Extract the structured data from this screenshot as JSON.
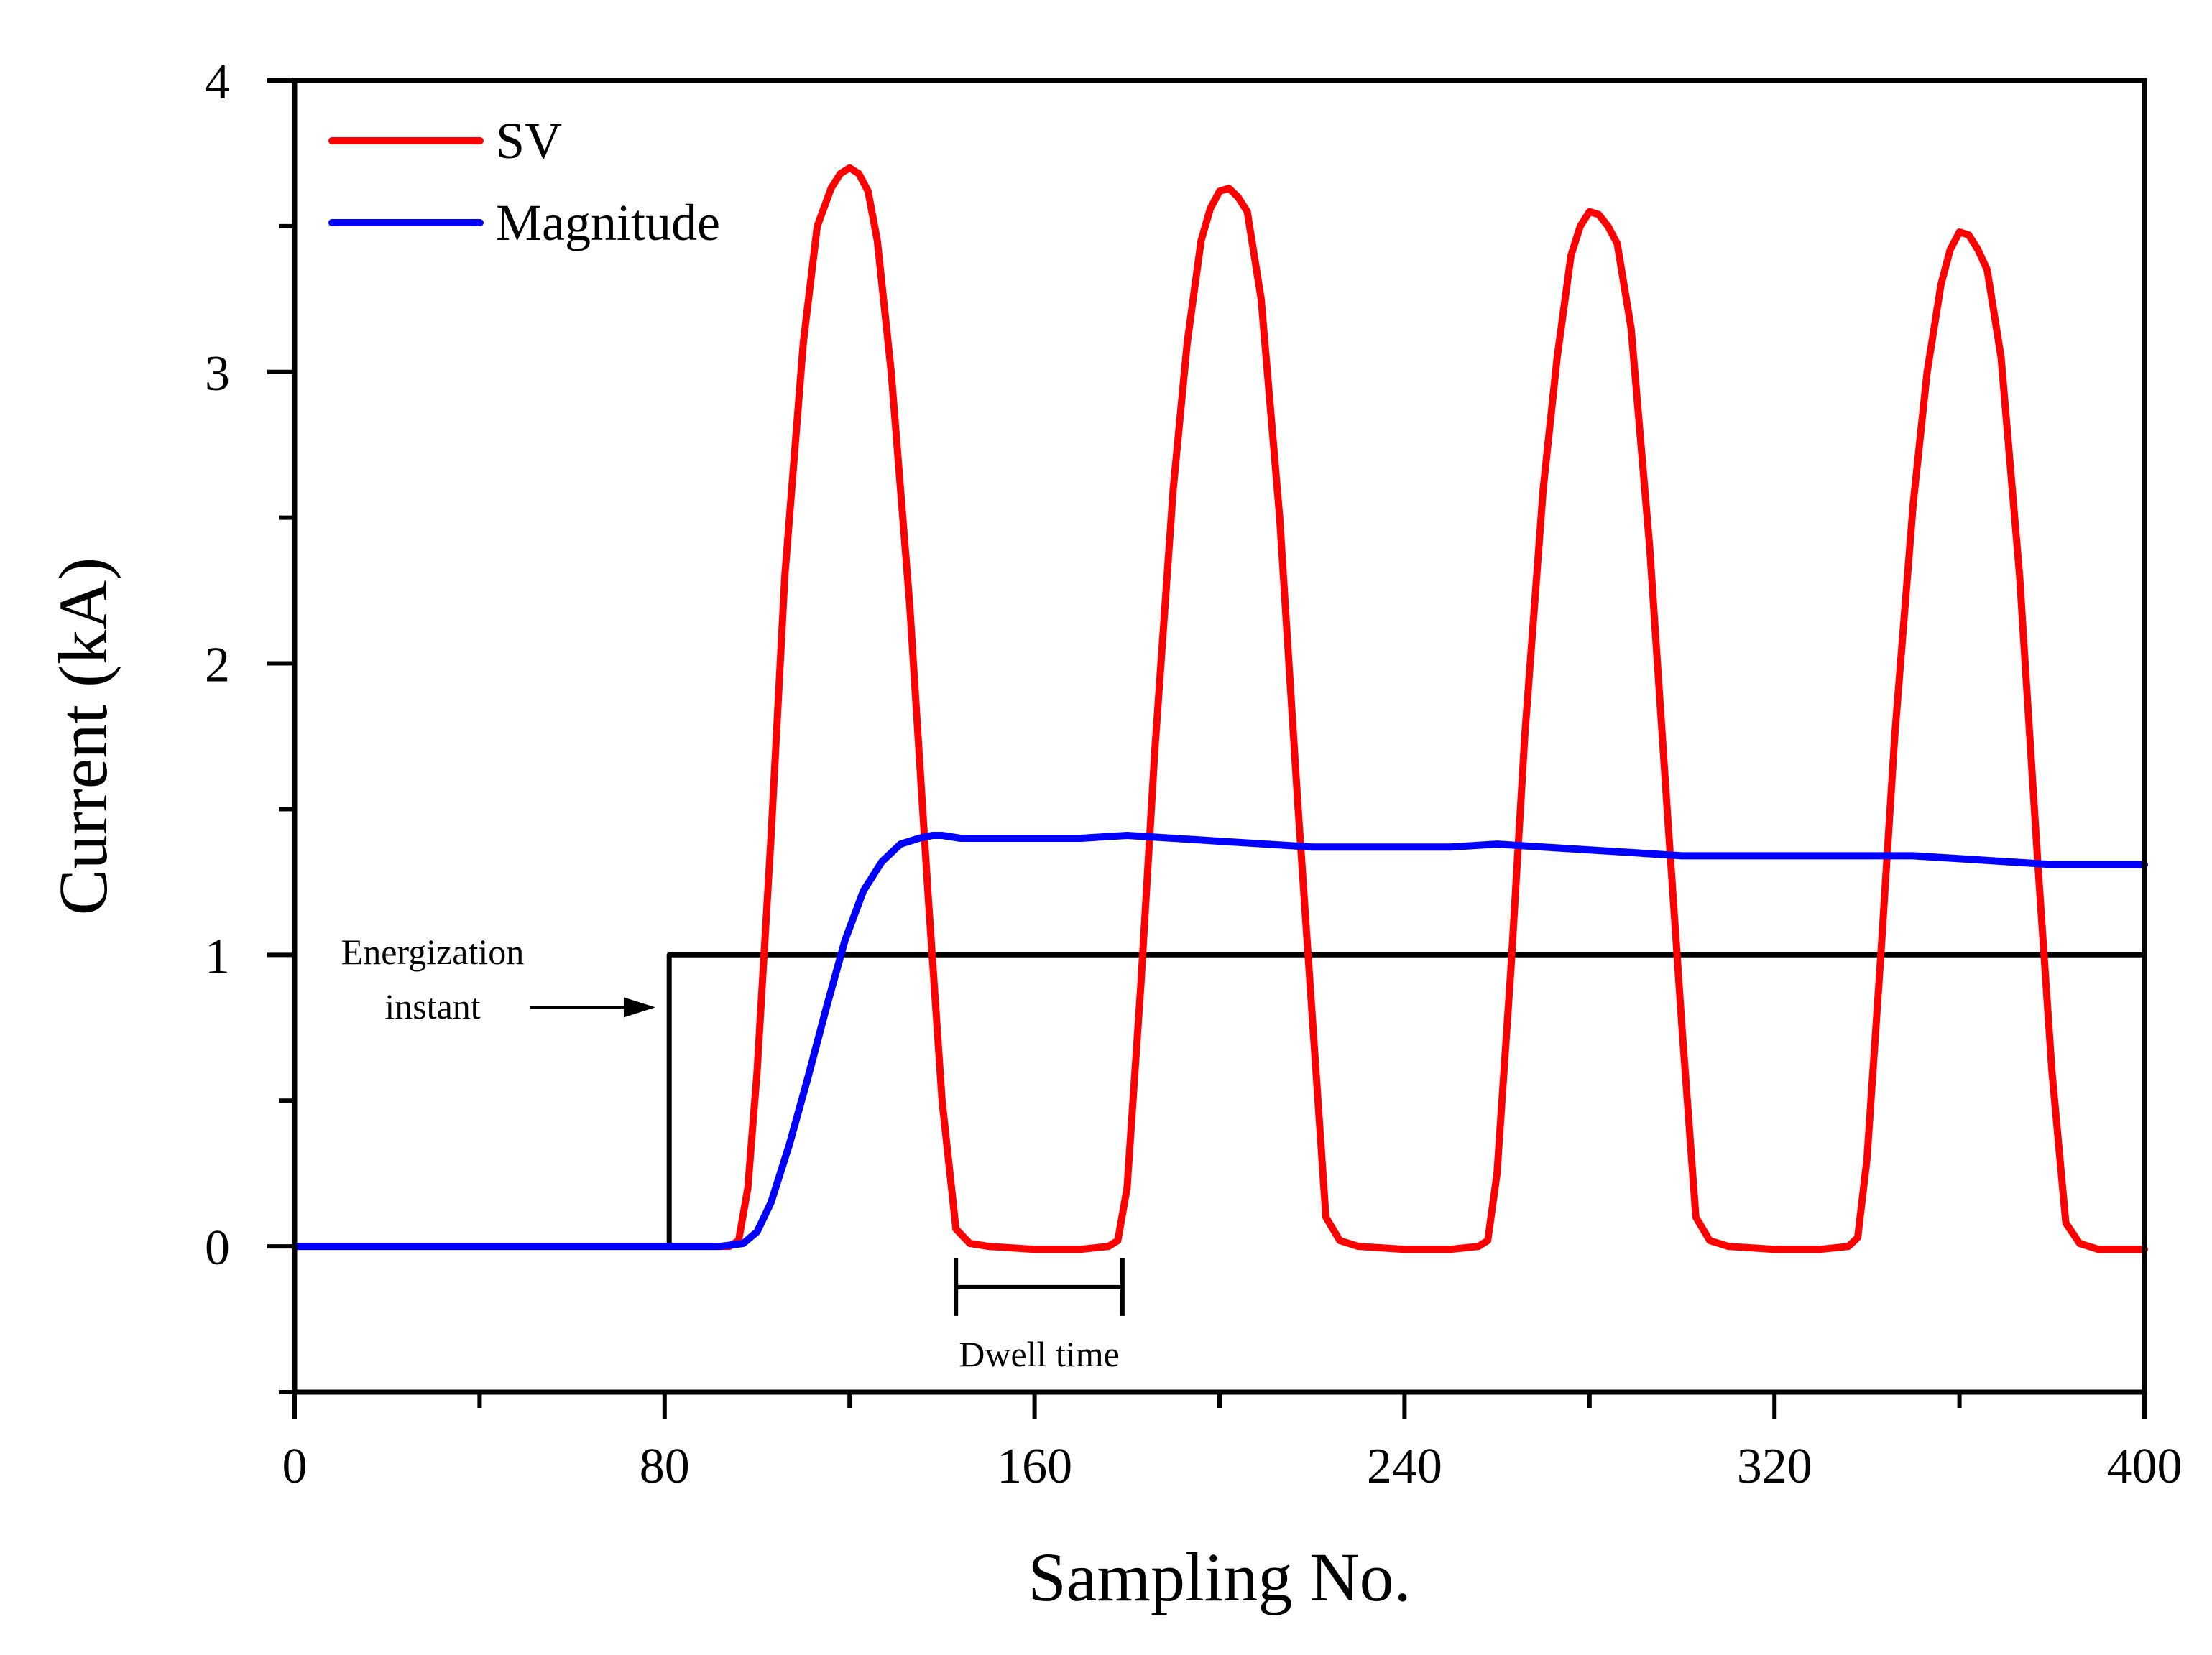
{
  "chart_data": {
    "type": "line",
    "xlabel": "Sampling No.",
    "ylabel": "Current (kA)",
    "xlim": [
      0,
      400
    ],
    "ylim": [
      -0.5,
      4
    ],
    "xticks": [
      0,
      80,
      160,
      240,
      320,
      400
    ],
    "xticks_minor": [
      40,
      120,
      200,
      280,
      360
    ],
    "yticks": [
      0,
      1,
      2,
      3,
      4
    ],
    "yticks_minor": [
      -0.5,
      0.5,
      1.5,
      2.5,
      3.5
    ],
    "grid": false,
    "legend_position": "top-left",
    "series": [
      {
        "name": "SV",
        "color": "#ff0000",
        "x": [
          0,
          90,
          94,
          96,
          98,
          100,
          103,
          106,
          110,
          113,
          116,
          118,
          120,
          122,
          124,
          126,
          129,
          133,
          137,
          140,
          143,
          146,
          150,
          160,
          170,
          176,
          178,
          180,
          183,
          186,
          190,
          193,
          196,
          198,
          200,
          202,
          204,
          206,
          209,
          213,
          217,
          220,
          223,
          226,
          230,
          240,
          250,
          256,
          258,
          260,
          263,
          266,
          270,
          273,
          276,
          278,
          280,
          282,
          284,
          286,
          289,
          293,
          297,
          300,
          303,
          306,
          310,
          320,
          330,
          336,
          338,
          340,
          343,
          346,
          350,
          353,
          356,
          358,
          360,
          362,
          364,
          366,
          369,
          373,
          377,
          380,
          383,
          386,
          390,
          400
        ],
        "y": [
          0,
          0,
          0,
          0.02,
          0.2,
          0.6,
          1.4,
          2.3,
          3.1,
          3.5,
          3.63,
          3.68,
          3.7,
          3.68,
          3.62,
          3.45,
          3.0,
          2.2,
          1.2,
          0.5,
          0.06,
          0.01,
          0,
          -0.01,
          -0.01,
          0,
          0.02,
          0.2,
          0.9,
          1.7,
          2.6,
          3.1,
          3.45,
          3.56,
          3.62,
          3.63,
          3.6,
          3.55,
          3.25,
          2.5,
          1.5,
          0.8,
          0.1,
          0.02,
          0,
          -0.01,
          -0.01,
          0,
          0.02,
          0.25,
          0.95,
          1.75,
          2.6,
          3.05,
          3.4,
          3.5,
          3.55,
          3.54,
          3.5,
          3.44,
          3.15,
          2.4,
          1.45,
          0.75,
          0.1,
          0.02,
          0,
          -0.01,
          -0.01,
          0,
          0.03,
          0.3,
          1.0,
          1.75,
          2.55,
          3.0,
          3.3,
          3.42,
          3.48,
          3.47,
          3.42,
          3.35,
          3.05,
          2.3,
          1.3,
          0.6,
          0.08,
          0.01,
          -0.01,
          -0.01
        ]
      },
      {
        "name": "Magnitude",
        "color": "#0000ff",
        "x": [
          0,
          85,
          92,
          97,
          100,
          103,
          107,
          111,
          115,
          119,
          123,
          127,
          131,
          135,
          138,
          140,
          144,
          150,
          160,
          170,
          180,
          190,
          200,
          210,
          220,
          230,
          240,
          250,
          260,
          270,
          280,
          290,
          300,
          310,
          320,
          330,
          340,
          350,
          360,
          370,
          380,
          390,
          400
        ],
        "y": [
          0,
          0,
          0,
          0.01,
          0.05,
          0.15,
          0.35,
          0.58,
          0.82,
          1.05,
          1.22,
          1.32,
          1.38,
          1.4,
          1.41,
          1.41,
          1.4,
          1.4,
          1.4,
          1.4,
          1.41,
          1.4,
          1.39,
          1.38,
          1.37,
          1.37,
          1.37,
          1.37,
          1.38,
          1.37,
          1.36,
          1.35,
          1.34,
          1.34,
          1.34,
          1.34,
          1.34,
          1.34,
          1.33,
          1.32,
          1.31,
          1.31,
          1.31
        ]
      },
      {
        "name": "",
        "color": "#000000",
        "x": [
          0,
          81,
          81,
          400
        ],
        "y": [
          0,
          0,
          1,
          1
        ]
      }
    ],
    "annotations": [
      {
        "text_line1": "Energization",
        "text_line2": "instant",
        "arrow_to_x": 78,
        "arrow_to_y": 0.82
      },
      {
        "text": "Dwell time",
        "bracket_x": [
          143,
          179
        ],
        "bracket_y": -0.14
      }
    ]
  }
}
